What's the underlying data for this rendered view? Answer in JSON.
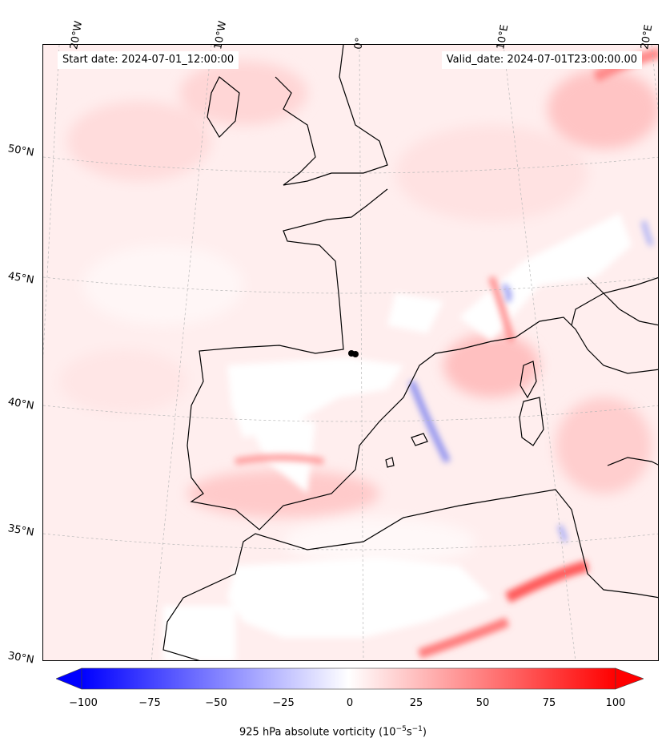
{
  "info": {
    "start_date": "Start date: 2024-07-01_12:00:00",
    "valid_date": "Valid_date: 2024-07-01T23:00:00.00"
  },
  "longitude_labels": [
    "20°W",
    "10°W",
    "0°",
    "10°E",
    "20°E"
  ],
  "latitude_labels": [
    "50°N",
    "45°N",
    "40°N",
    "35°N",
    "30°N"
  ],
  "colorbar": {
    "ticks": [
      "−100",
      "−75",
      "−50",
      "−25",
      "0",
      "25",
      "50",
      "75",
      "100"
    ],
    "label_text": "925 hPa absolute vorticity (10",
    "label_exp1": "−5",
    "label_mid": "s",
    "label_exp2": "−1",
    "label_end": ")",
    "colors": {
      "negative": "#0000ff",
      "neutral": "#ffffff",
      "positive": "#ff0000"
    }
  },
  "coastline_color": "#000000"
}
